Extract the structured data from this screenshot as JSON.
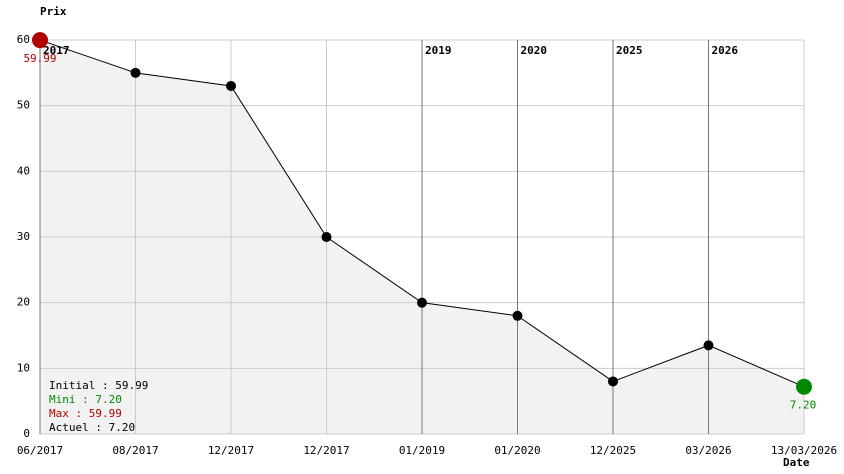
{
  "chart_data": {
    "type": "line",
    "y_label": "Prix",
    "x_label": "Date",
    "categories": [
      "06/2017",
      "08/2017",
      "12/2017",
      "12/2017",
      "01/2019",
      "01/2020",
      "12/2025",
      "03/2026",
      "13/03/2026"
    ],
    "values": [
      59.99,
      55,
      53,
      30,
      20,
      18,
      8,
      13.5,
      7.2
    ],
    "value_labels": [
      "59.99",
      null,
      null,
      null,
      null,
      null,
      null,
      null,
      "7.20"
    ],
    "color": "#000000",
    "fill": "#f2f2f2",
    "max_color": "#b00000",
    "min_color": "#008800",
    "ylim": [
      0,
      60
    ],
    "yticks": [
      0,
      10,
      20,
      30,
      40,
      50,
      60
    ],
    "grid": true,
    "year_markers": [
      {
        "label": "2017",
        "index": 0
      },
      {
        "label": "2019",
        "index": 4
      },
      {
        "label": "2020",
        "index": 5
      },
      {
        "label": "2025",
        "index": 6
      },
      {
        "label": "2026",
        "index": 7
      }
    ],
    "stats": [
      {
        "text": "Initial : 59.99",
        "color": "#000000"
      },
      {
        "text": "Mini : 7.20",
        "color": "#008800"
      },
      {
        "text": "Max : 59.99",
        "color": "#b00000"
      },
      {
        "text": "Actuel : 7.20",
        "color": "#000000"
      }
    ]
  }
}
